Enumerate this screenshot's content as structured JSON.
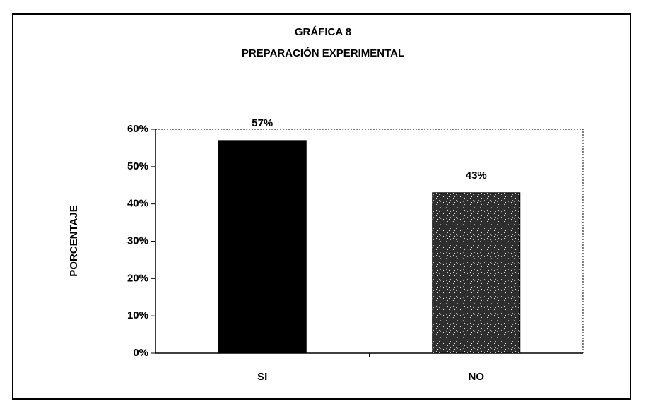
{
  "chart_data": {
    "type": "bar",
    "title": "GRÁFICA 8",
    "subtitle": "PREPARACIÓN EXPERIMENTAL",
    "y_label": "PORCENTAJE",
    "categories": [
      "SI",
      "NO"
    ],
    "values": [
      57,
      43
    ],
    "value_labels": [
      "57%",
      "43%"
    ],
    "colors": [
      "#000000",
      "#2e2e2e"
    ],
    "ylim": [
      0,
      60
    ],
    "yticks": [
      {
        "value": 0,
        "label": "0%"
      },
      {
        "value": 10,
        "label": "10%"
      },
      {
        "value": 20,
        "label": "20%"
      },
      {
        "value": 30,
        "label": "30%"
      },
      {
        "value": 40,
        "label": "40%"
      },
      {
        "value": 50,
        "label": "50%"
      },
      {
        "value": 60,
        "label": "60%"
      }
    ],
    "grid": false
  }
}
